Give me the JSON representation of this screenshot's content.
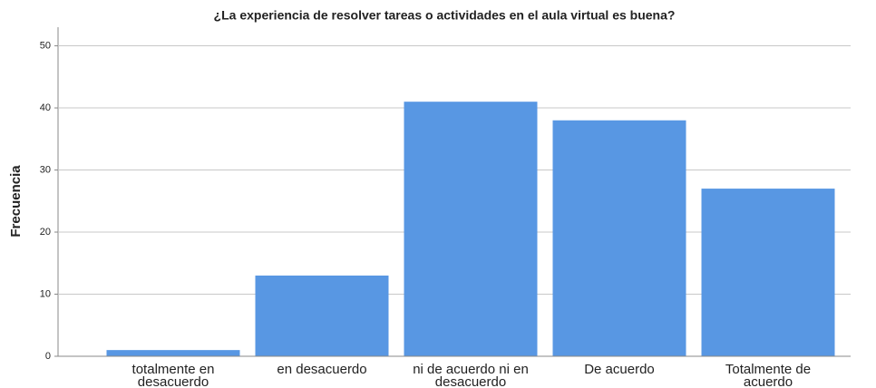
{
  "chart_data": {
    "type": "bar",
    "title": "¿La experiencia de resolver tareas o actividades en el aula virtual es buena?",
    "y_label": "Frecuencia",
    "categories": [
      "totalmente en desacuerdo",
      "en desacuerdo",
      "ni de acuerdo ni en desacuerdo",
      "De acuerdo",
      "Totalmente de acuerdo"
    ],
    "values": [
      1,
      13,
      41,
      38,
      27
    ],
    "color": "#5897e3",
    "ylim": [
      0,
      53
    ],
    "yticks": [
      0,
      10,
      20,
      30,
      40,
      50
    ],
    "grid": true
  }
}
